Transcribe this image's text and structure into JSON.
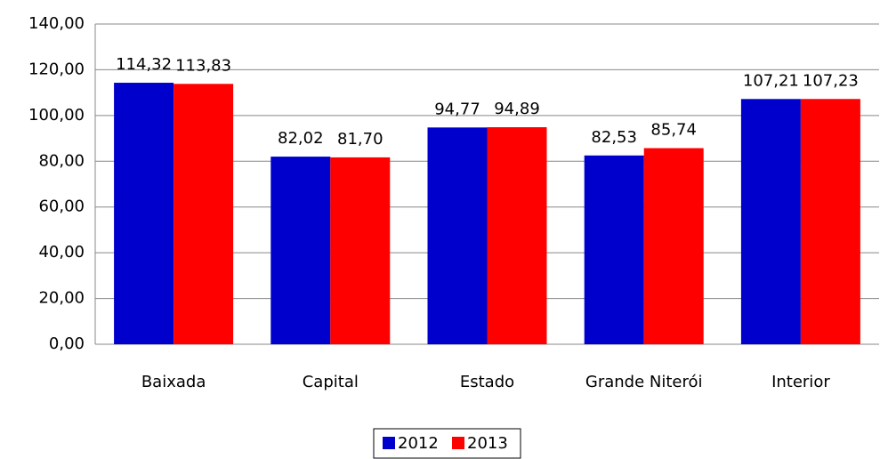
{
  "chart_data": {
    "type": "bar",
    "categories": [
      "Baixada",
      "Capital",
      "Estado",
      "Grande Niterói",
      "Interior"
    ],
    "series": [
      {
        "name": "2012",
        "color": "#0000cc",
        "values": [
          114.32,
          82.02,
          94.77,
          82.53,
          107.21
        ],
        "value_labels": [
          "114,32",
          "82,02",
          "94,77",
          "82,53",
          "107,21"
        ]
      },
      {
        "name": "2013",
        "color": "#ff0000",
        "values": [
          113.83,
          81.7,
          94.89,
          85.74,
          107.23
        ],
        "value_labels": [
          "113,83",
          "81,70",
          "94,89",
          "85,74",
          "107,23"
        ]
      }
    ],
    "ylim": [
      0,
      140
    ],
    "yticks": [
      {
        "value": 0,
        "label": "0,00"
      },
      {
        "value": 20,
        "label": "20,00"
      },
      {
        "value": 40,
        "label": "40,00"
      },
      {
        "value": 60,
        "label": "60,00"
      },
      {
        "value": 80,
        "label": "80,00"
      },
      {
        "value": 100,
        "label": "100,00"
      },
      {
        "value": 120,
        "label": "120,00"
      },
      {
        "value": 140,
        "label": "140,00"
      }
    ],
    "grid": true
  }
}
